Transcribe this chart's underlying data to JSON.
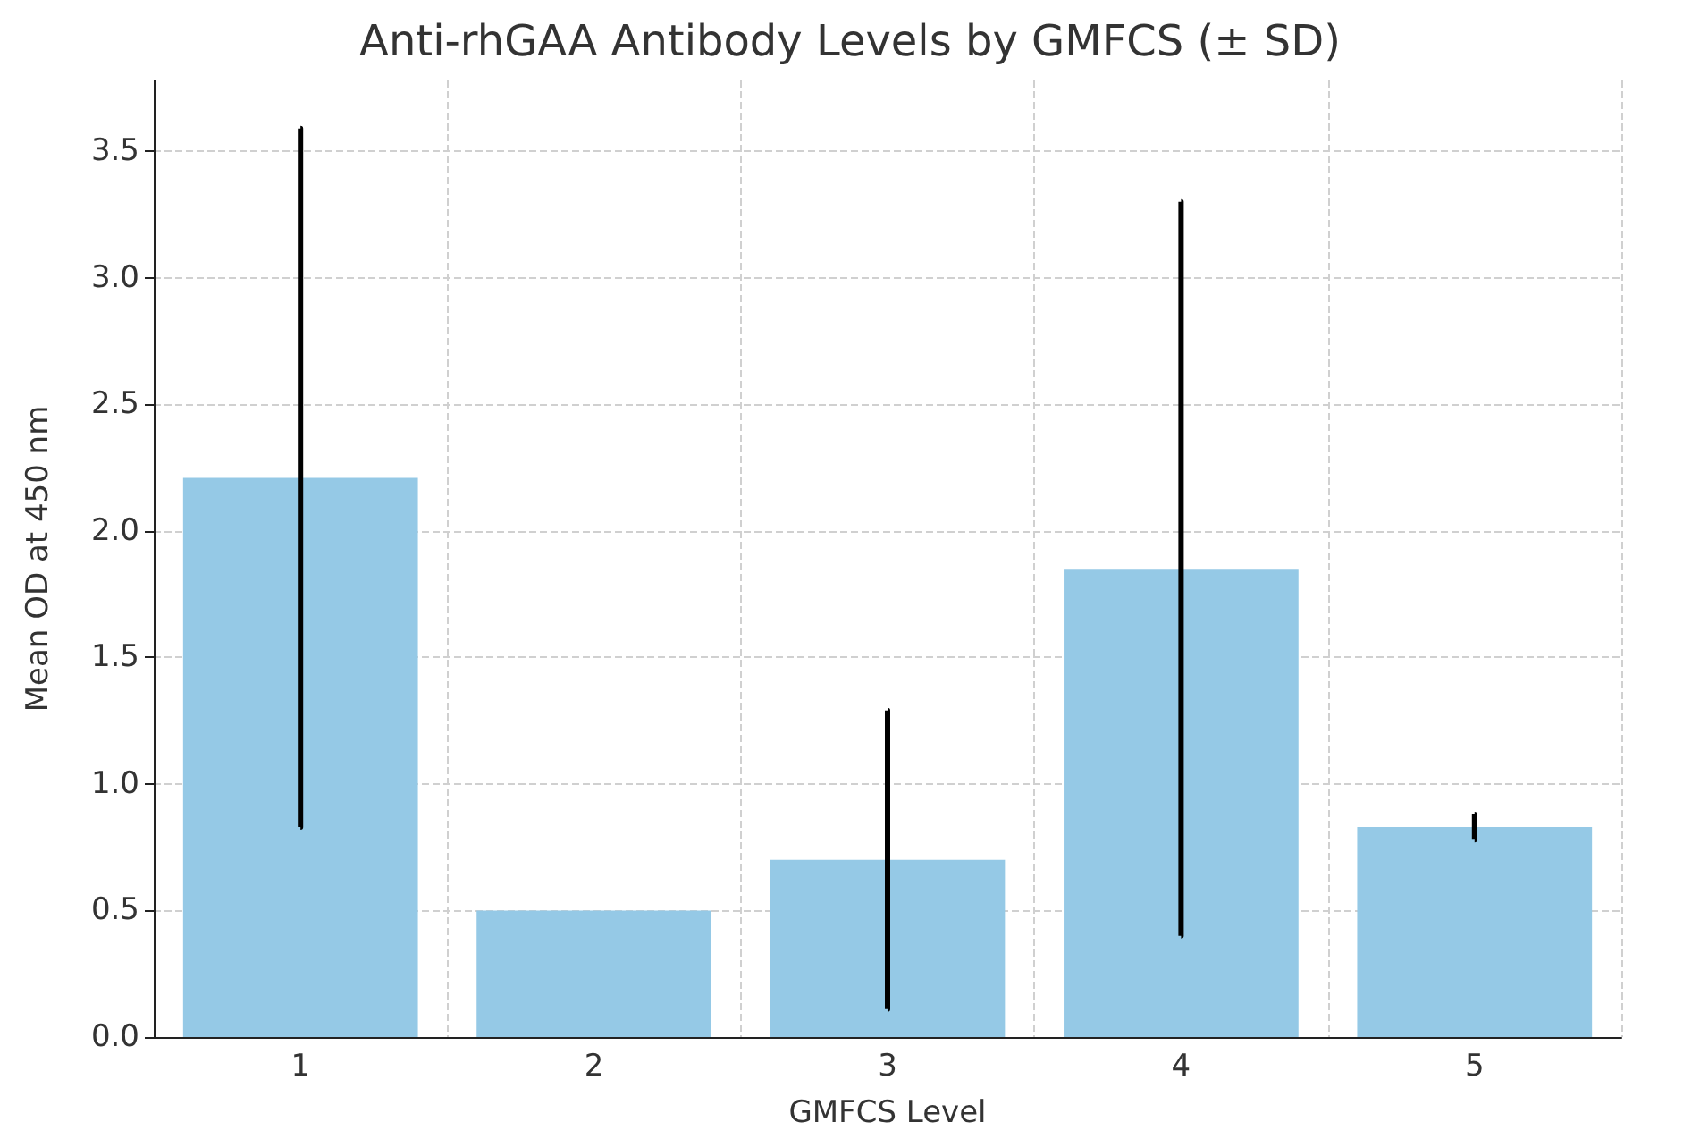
{
  "chart_data": {
    "type": "bar",
    "title": "Anti-rhGAA Antibody Levels by GMFCS (± SD)",
    "xlabel": "GMFCS Level",
    "ylabel": "Mean OD at 450 nm",
    "categories": [
      "1",
      "2",
      "3",
      "4",
      "5"
    ],
    "values": [
      2.21,
      0.5,
      0.7,
      1.85,
      0.83
    ],
    "errors": [
      1.38,
      null,
      0.59,
      1.45,
      0.05
    ],
    "color": "#95c9e6",
    "ylim": [
      0,
      3.78
    ],
    "yticks": [
      {
        "value": 0,
        "label": "0.0"
      },
      {
        "value": 0.5,
        "label": "0.5"
      },
      {
        "value": 1,
        "label": "1.0"
      },
      {
        "value": 1.5,
        "label": "1.5"
      },
      {
        "value": 2,
        "label": "2.0"
      },
      {
        "value": 2.5,
        "label": "2.5"
      },
      {
        "value": 3,
        "label": "3.0"
      },
      {
        "value": 3.5,
        "label": "3.5"
      }
    ],
    "grid": true
  }
}
